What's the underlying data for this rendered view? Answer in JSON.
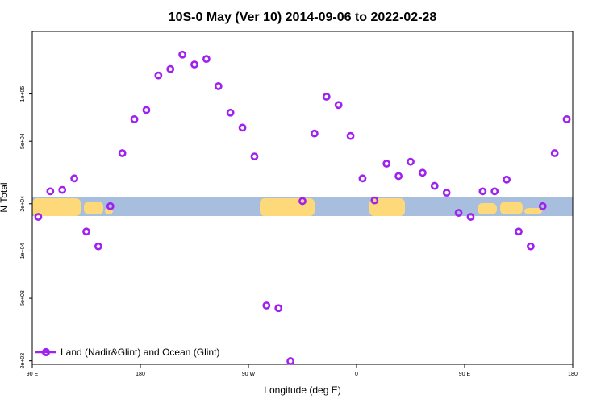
{
  "chart_data": {
    "type": "scatter",
    "title": "10S-0 May (Ver 10)   2014-09-06 to 2022-02-28",
    "xlabel": "Longitude (deg E)",
    "ylabel": "N Total",
    "x_ticks": [
      {
        "value": 90,
        "label": "90 E"
      },
      {
        "value": 180,
        "label": "180"
      },
      {
        "value": 270,
        "label": "90 W"
      },
      {
        "value": 360,
        "label": "0"
      },
      {
        "value": 450,
        "label": "90 E"
      },
      {
        "value": 540,
        "label": "180"
      }
    ],
    "y_ticks": [
      {
        "value": 2000,
        "label": "2e+03"
      },
      {
        "value": 5000,
        "label": "5e+03"
      },
      {
        "value": 10000,
        "label": "1e+04"
      },
      {
        "value": 20000,
        "label": "2e+04"
      },
      {
        "value": 50000,
        "label": "5e+04"
      },
      {
        "value": 100000,
        "label": "1e+05"
      }
    ],
    "xlim": [
      90,
      540
    ],
    "ylim": [
      1900,
      250000
    ],
    "y_scale": "log",
    "legend": {
      "position": "bottom-left"
    },
    "series": [
      {
        "name": "Land (Nadir&Glint) and Ocean (Glint)",
        "color": "#a020f0",
        "x": [
          95,
          105,
          115,
          125,
          135,
          145,
          155,
          165,
          175,
          185,
          195,
          205,
          215,
          225,
          235,
          245,
          255,
          265,
          275,
          285,
          295,
          305,
          315,
          325,
          335,
          345,
          355,
          365,
          375,
          385,
          395,
          405,
          415,
          425,
          435,
          445,
          455,
          465,
          475,
          485,
          495,
          505,
          515,
          525,
          535
        ],
        "y": [
          16500,
          24000,
          24500,
          29000,
          13300,
          10700,
          19300,
          42000,
          69000,
          79000,
          131000,
          144000,
          178000,
          154000,
          167000,
          112000,
          76000,
          61000,
          40000,
          4500,
          4330,
          1990,
          20800,
          56000,
          96000,
          85000,
          54000,
          29000,
          21000,
          36000,
          30000,
          37000,
          31500,
          26000,
          23500,
          17500,
          16500,
          24000,
          24000,
          28500,
          13300,
          10700,
          19300,
          42000,
          69000
        ]
      }
    ]
  }
}
